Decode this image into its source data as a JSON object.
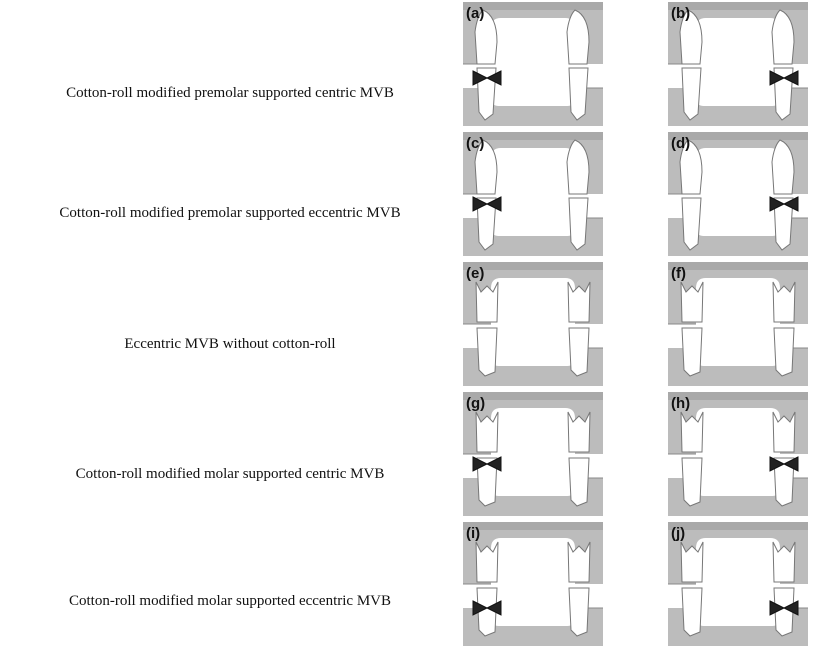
{
  "rows": [
    {
      "label": "Cotton-roll modified premolar supported centric MVB",
      "panels": [
        "(a)",
        "(b)"
      ]
    },
    {
      "label": "Cotton-roll modified premolar supported eccentric MVB",
      "panels": [
        "(c)",
        "(d)"
      ]
    },
    {
      "label": "Eccentric MVB without cotton-roll",
      "panels": [
        "(e)",
        "(f)"
      ]
    },
    {
      "label": "Cotton-roll modified molar supported centric MVB",
      "panels": [
        "(g)",
        "(h)"
      ]
    },
    {
      "label": "Cotton-roll modified molar supported eccentric MVB",
      "panels": [
        "(i)",
        "(j)"
      ]
    }
  ]
}
